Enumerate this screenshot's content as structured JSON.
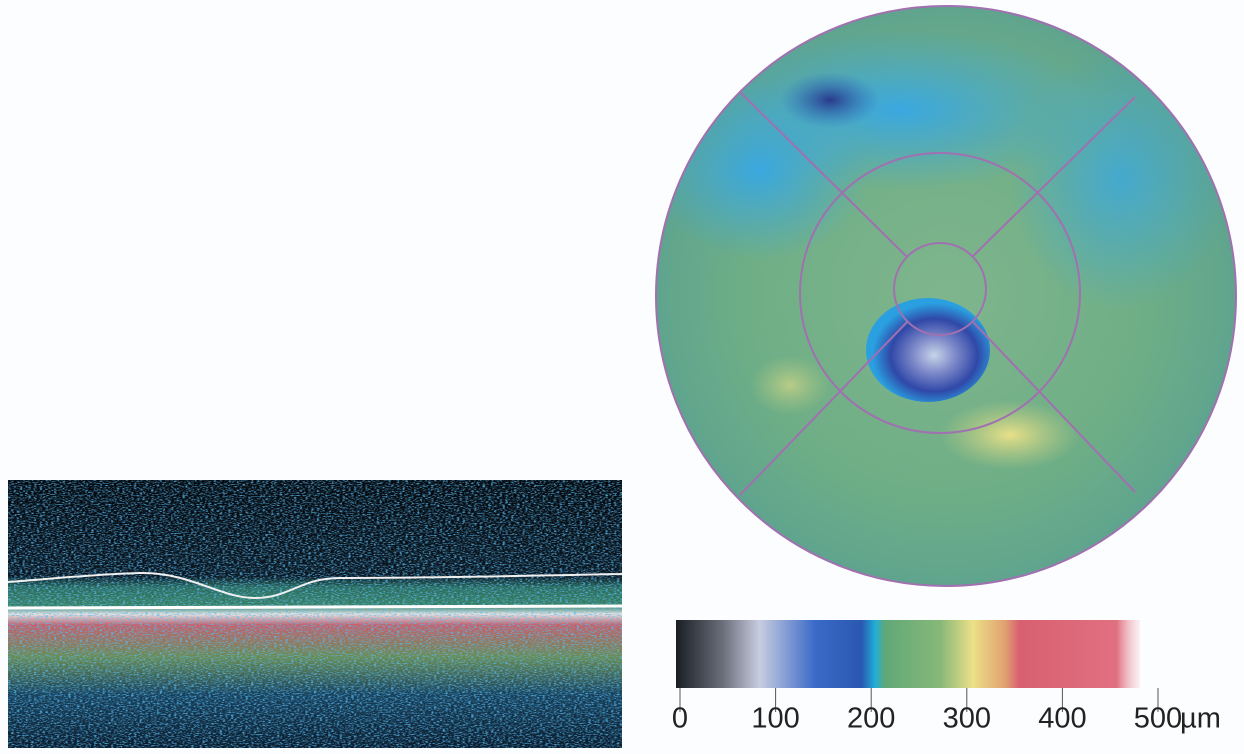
{
  "colorbar": {
    "ticks": [
      0,
      100,
      200,
      300,
      400,
      500
    ],
    "unit": "µm"
  }
}
